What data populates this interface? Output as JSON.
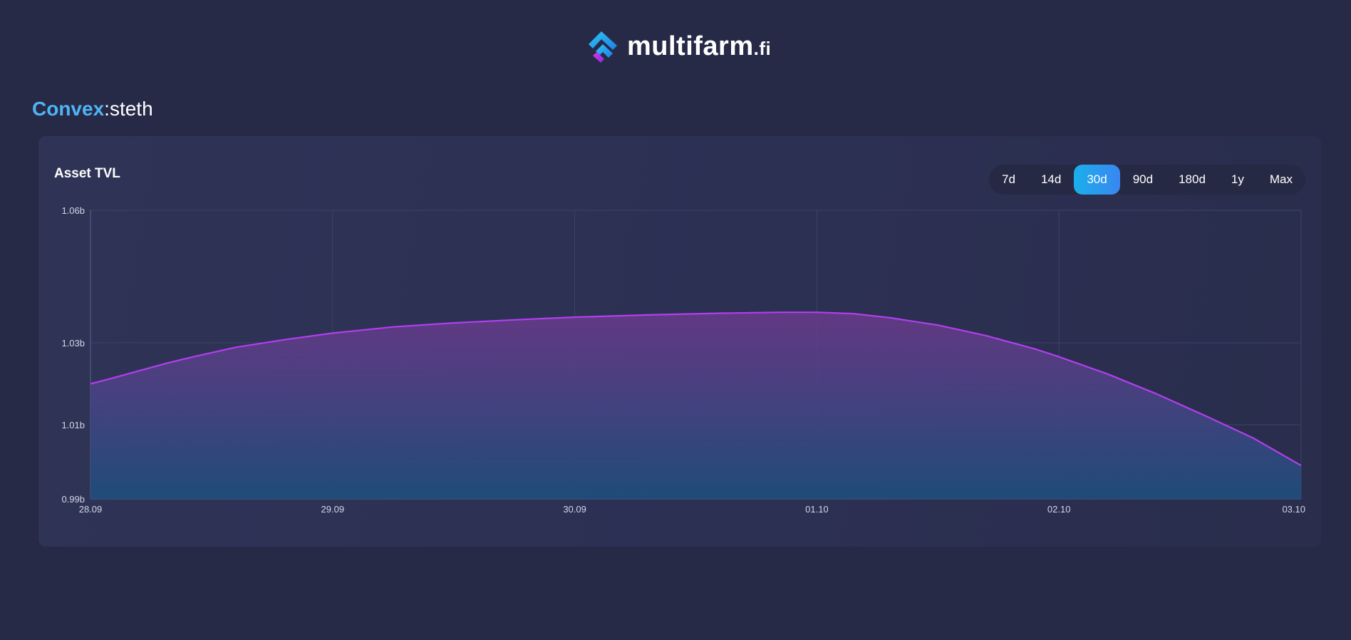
{
  "brand": {
    "name": "multifarm",
    "tld": ".fi"
  },
  "pool": {
    "protocol": "Convex",
    "separator": ":",
    "asset": "steth"
  },
  "card": {
    "title": "Asset TVL"
  },
  "range_buttons": [
    {
      "label": "7d",
      "active": false
    },
    {
      "label": "14d",
      "active": false
    },
    {
      "label": "30d",
      "active": true
    },
    {
      "label": "90d",
      "active": false
    },
    {
      "label": "180d",
      "active": false
    },
    {
      "label": "1y",
      "active": false
    },
    {
      "label": "Max",
      "active": false
    }
  ],
  "colors": {
    "line": "#b23ef0",
    "area_top": "#6b3a8c",
    "area_bottom": "#1e4d7a",
    "grid": "#3d4266",
    "accent": "#4fb4f5"
  },
  "chart_data": {
    "type": "area",
    "title": "Asset TVL",
    "x": [
      "28.09",
      "28.16",
      "28.24",
      "28.32",
      "28.40",
      "28.52",
      "28.70",
      "28.85",
      "29.00",
      "29.25",
      "29.50",
      "29.75",
      "30.00",
      "30.35",
      "30.70",
      "31.00",
      "01.00",
      "01.15",
      "01.30",
      "01.50",
      "01.70",
      "01.90",
      "02.00",
      "02.20",
      "02.40",
      "02.60",
      "02.80",
      "03.00"
    ],
    "x_numeric": [
      0,
      0.08,
      0.16,
      0.24,
      0.32,
      0.44,
      0.6,
      0.8,
      1.0,
      1.25,
      1.5,
      1.75,
      2.0,
      2.3,
      2.6,
      2.85,
      3.0,
      3.15,
      3.3,
      3.5,
      3.7,
      3.9,
      4.0,
      4.2,
      4.4,
      4.6,
      4.8,
      5.0
    ],
    "y": [
      1.02,
      1.0212,
      1.0225,
      1.0238,
      1.0251,
      1.0268,
      1.0289,
      1.0307,
      1.0322,
      1.0336,
      1.0345,
      1.0352,
      1.0358,
      1.0363,
      1.0367,
      1.0369,
      1.0369,
      1.0366,
      1.0357,
      1.034,
      1.0316,
      1.0285,
      1.0266,
      1.0224,
      1.0176,
      1.0123,
      1.0065,
      0.999
    ],
    "x_ticks": [
      {
        "value": 0,
        "label": "28.09"
      },
      {
        "value": 1,
        "label": "29.09"
      },
      {
        "value": 2,
        "label": "30.09"
      },
      {
        "value": 3,
        "label": "01.10"
      },
      {
        "value": 4,
        "label": "02.10"
      },
      {
        "value": 5,
        "label": "03.10"
      }
    ],
    "y_ticks": [
      {
        "value": 0.99,
        "label": "0.99b"
      },
      {
        "value": 1.01,
        "label": "1.01b"
      },
      {
        "value": 1.03,
        "label": "1.03b"
      },
      {
        "value": 1.06,
        "label": "1.06b"
      }
    ],
    "xlim": [
      0,
      5
    ],
    "ylim": [
      0.99,
      1.06
    ],
    "grid": true,
    "legend": "none"
  }
}
